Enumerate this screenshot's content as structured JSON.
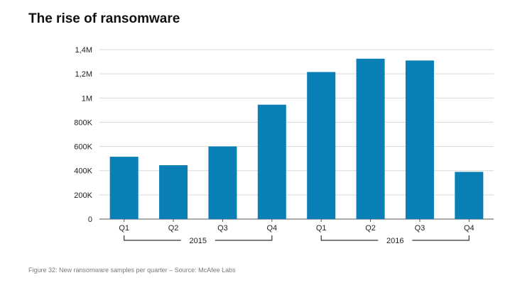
{
  "colors": {
    "bar": "#0a7fb6",
    "grid": "#d9d9d9",
    "axis": "#555555",
    "bracket": "#333333"
  },
  "chart_data": {
    "type": "bar",
    "title": "The rise of ransomware",
    "caption": "Figure 32: New ransomware samples per quarter – Source: McAfee Labs",
    "categories": [
      "Q1",
      "Q2",
      "Q3",
      "Q4",
      "Q1",
      "Q2",
      "Q3",
      "Q4"
    ],
    "groups": [
      {
        "label": "2015",
        "categories": [
          0,
          1,
          2,
          3
        ]
      },
      {
        "label": "2016",
        "categories": [
          4,
          5,
          6,
          7
        ]
      }
    ],
    "values": [
      515000,
      445000,
      600000,
      945000,
      1215000,
      1325000,
      1310000,
      390000
    ],
    "ylim": [
      0,
      1400000
    ],
    "yticks": [
      0,
      200000,
      400000,
      600000,
      800000,
      1000000,
      1200000,
      1400000
    ],
    "ytick_labels": [
      "0",
      "200K",
      "400K",
      "600K",
      "800K",
      "1M",
      "1,2M",
      "1,4M"
    ],
    "xlabel": "",
    "ylabel": "",
    "grid": true,
    "legend": "none"
  }
}
